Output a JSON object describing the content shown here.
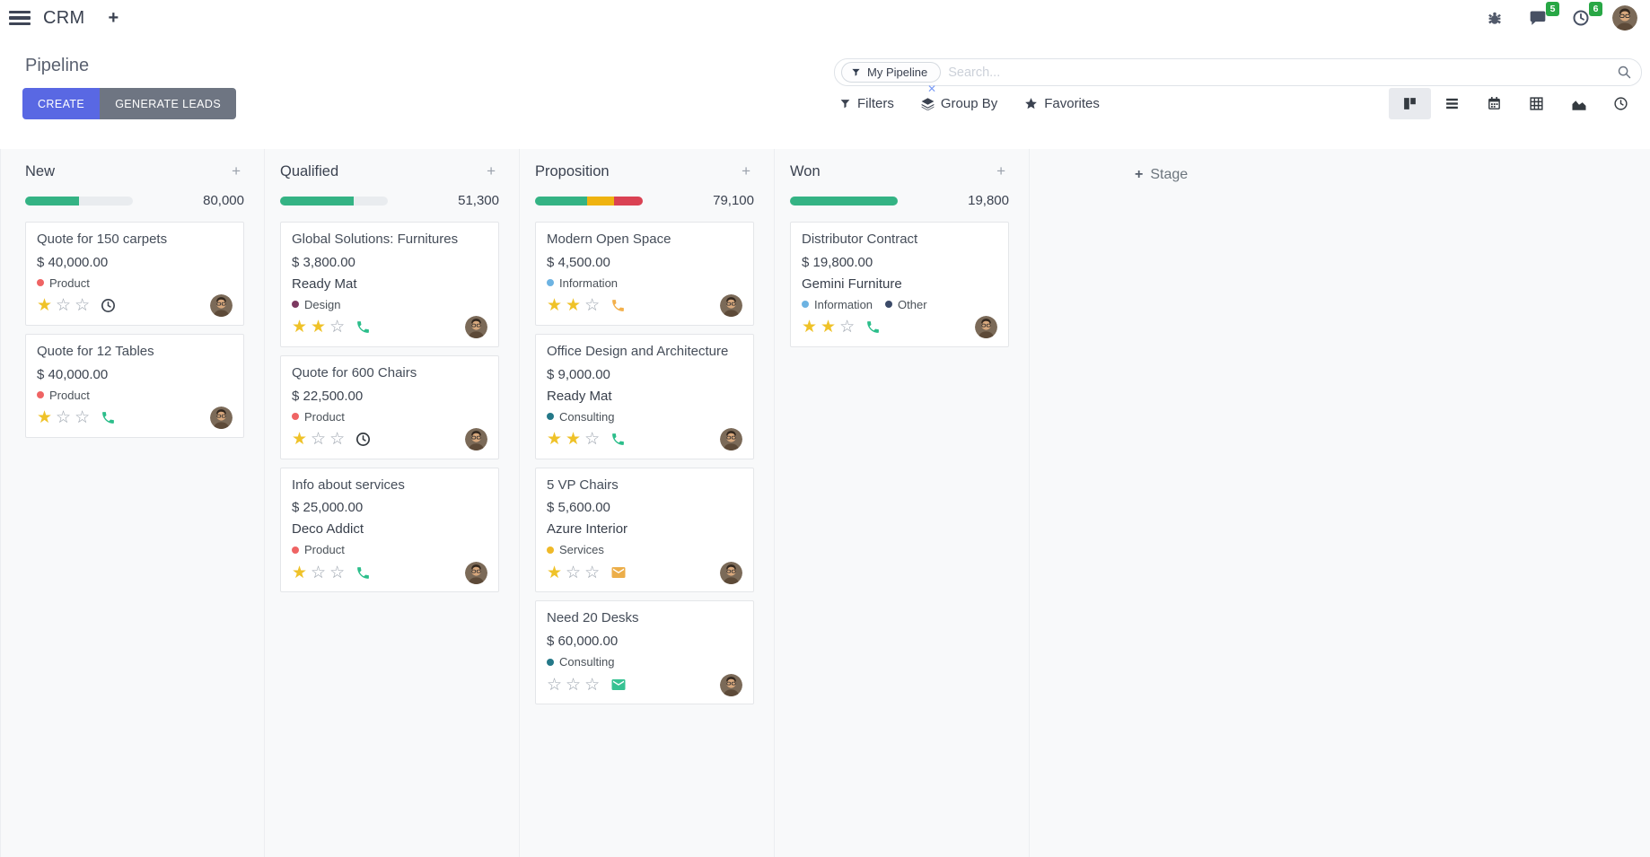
{
  "navbar": {
    "app_name": "CRM",
    "message_count": "5",
    "activity_count": "6",
    "icons": [
      "menu-icon",
      "add-menu-icon",
      "bug-icon",
      "messages-icon",
      "activities-icon",
      "user-avatar"
    ]
  },
  "control_panel": {
    "title": "Pipeline",
    "create_label": "CREATE",
    "generate_leads_label": "GENERATE LEADS",
    "search": {
      "filter_chip": "My Pipeline",
      "placeholder": "Search...",
      "chip_icon": "filter-funnel-icon",
      "remove_icon": "x",
      "magnifier_icon": "search-icon"
    },
    "menus": [
      {
        "label": "Filters",
        "icon": "filter-funnel-icon"
      },
      {
        "label": "Group By",
        "icon": "layers-icon"
      },
      {
        "label": "Favorites",
        "icon": "star-icon"
      }
    ],
    "view_switcher": [
      {
        "name": "kanban",
        "active": true
      },
      {
        "name": "list",
        "active": false
      },
      {
        "name": "calendar",
        "active": false
      },
      {
        "name": "pivot",
        "active": false
      },
      {
        "name": "graph",
        "active": false
      },
      {
        "name": "activity",
        "active": false
      }
    ]
  },
  "colors": {
    "accent": "#5968e3",
    "neutral_button": "#6e7582",
    "success": "#34b384",
    "warning": "#efb310",
    "danger": "#da4253",
    "badge_green": "#28a745",
    "bar_track": "#e9ecef"
  },
  "board": {
    "add_stage_label": "Stage",
    "stars_total": 3,
    "columns": [
      {
        "name": "New",
        "count": "80,000",
        "progress": [
          {
            "color": "#34b384",
            "pct": 50
          }
        ],
        "cards": [
          {
            "title": "Quote for 150 carpets",
            "amount": "$ 40,000.00",
            "partner": null,
            "tags": [
              {
                "label": "Product",
                "color": "#ef6464"
              }
            ],
            "stars": 1,
            "activity": {
              "icon": "clock-icon",
              "color": "#3f4651"
            }
          },
          {
            "title": "Quote for 12 Tables",
            "amount": "$ 40,000.00",
            "partner": null,
            "tags": [
              {
                "label": "Product",
                "color": "#ef6464"
              }
            ],
            "stars": 1,
            "activity": {
              "icon": "phone-icon",
              "color": "#2cbe8b"
            }
          }
        ]
      },
      {
        "name": "Qualified",
        "count": "51,300",
        "progress": [
          {
            "color": "#34b384",
            "pct": 68
          }
        ],
        "cards": [
          {
            "title": "Global Solutions: Furnitures",
            "amount": "$ 3,800.00",
            "partner": "Ready Mat",
            "tags": [
              {
                "label": "Design",
                "color": "#7c3960"
              }
            ],
            "stars": 2,
            "activity": {
              "icon": "phone-icon",
              "color": "#2cbe8b"
            }
          },
          {
            "title": "Quote for 600 Chairs",
            "amount": "$ 22,500.00",
            "partner": null,
            "tags": [
              {
                "label": "Product",
                "color": "#ef6464"
              }
            ],
            "stars": 1,
            "activity": {
              "icon": "clock-icon",
              "color": "#343a40"
            }
          },
          {
            "title": "Info about services",
            "amount": "$ 25,000.00",
            "partner": "Deco Addict",
            "tags": [
              {
                "label": "Product",
                "color": "#ef6464"
              }
            ],
            "stars": 1,
            "activity": {
              "icon": "phone-icon",
              "color": "#2cbe8b"
            }
          }
        ]
      },
      {
        "name": "Proposition",
        "count": "79,100",
        "progress": [
          {
            "color": "#34b384",
            "pct": 48
          },
          {
            "color": "#efb310",
            "pct": 25
          },
          {
            "color": "#da4253",
            "pct": 27
          }
        ],
        "cards": [
          {
            "title": "Modern Open Space",
            "amount": "$ 4,500.00",
            "partner": null,
            "tags": [
              {
                "label": "Information",
                "color": "#6db3e2"
              }
            ],
            "stars": 2,
            "activity": {
              "icon": "phone-icon",
              "color": "#f3b04c"
            }
          },
          {
            "title": "Office Design and Architecture",
            "amount": "$ 9,000.00",
            "partner": "Ready Mat",
            "tags": [
              {
                "label": "Consulting",
                "color": "#247888"
              }
            ],
            "stars": 2,
            "activity": {
              "icon": "phone-icon",
              "color": "#2cbe8b"
            }
          },
          {
            "title": "5 VP Chairs",
            "amount": "$ 5,600.00",
            "partner": "Azure Interior",
            "tags": [
              {
                "label": "Services",
                "color": "#efb928"
              }
            ],
            "stars": 1,
            "activity": {
              "icon": "envelope-icon",
              "color": "#ecae49"
            }
          },
          {
            "title": "Need 20 Desks",
            "amount": "$ 60,000.00",
            "partner": null,
            "tags": [
              {
                "label": "Consulting",
                "color": "#247888"
              }
            ],
            "stars": 0,
            "activity": {
              "icon": "envelope-icon",
              "color": "#37c293"
            }
          }
        ]
      },
      {
        "name": "Won",
        "count": "19,800",
        "progress": [
          {
            "color": "#34b384",
            "pct": 100
          }
        ],
        "cards": [
          {
            "title": "Distributor Contract",
            "amount": "$ 19,800.00",
            "partner": "Gemini Furniture",
            "tags": [
              {
                "label": "Information",
                "color": "#6db3e2"
              },
              {
                "label": "Other",
                "color": "#3b4a68"
              }
            ],
            "stars": 2,
            "activity": {
              "icon": "phone-icon",
              "color": "#2cbe8b"
            }
          }
        ]
      }
    ]
  }
}
